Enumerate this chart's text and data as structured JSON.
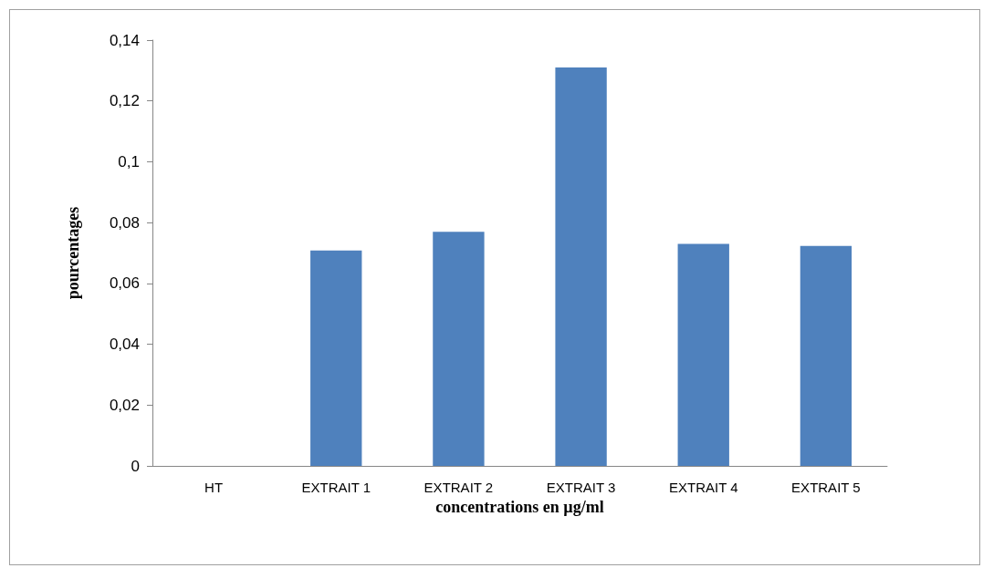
{
  "chart_data": {
    "type": "bar",
    "xlabel": "concentrations en µg/ml",
    "ylabel": "pourcentages",
    "categories": [
      "HT",
      "EXTRAIT 1",
      "EXTRAIT 2",
      "EXTRAIT 3",
      "EXTRAIT 4",
      "EXTRAIT 5"
    ],
    "values": [
      0,
      0.0708,
      0.077,
      0.131,
      0.073,
      0.0723
    ],
    "color": "#4f81bd",
    "ylim": [
      0,
      0.14
    ],
    "yticks": [
      0,
      {
        "value": 0.02,
        "label": "0,02"
      },
      {
        "value": 0.04,
        "label": "0,04"
      },
      {
        "value": 0.06,
        "label": "0,06"
      },
      {
        "value": 0.08,
        "label": "0,08"
      },
      {
        "value": 0.1,
        "label": "0,1"
      },
      {
        "value": 0.12,
        "label": "0,12"
      },
      {
        "value": 0.14,
        "label": "0,14"
      }
    ],
    "grid": false
  }
}
